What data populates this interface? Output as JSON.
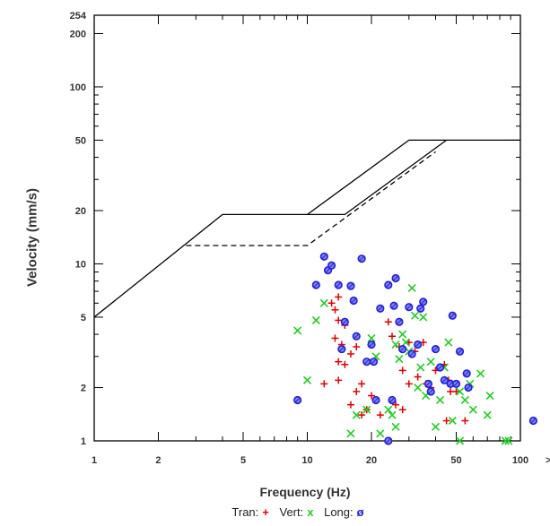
{
  "chart_data": {
    "type": "scatter",
    "xlabel": "Frequency (Hz)",
    "ylabel": "Velocity (mm/s)",
    "x_scale": "log",
    "y_scale": "log",
    "xlim": [
      1,
      100
    ],
    "ylim": [
      1,
      254
    ],
    "x_ticks": [
      "1",
      "2",
      "5",
      "10",
      "20",
      "50",
      "100"
    ],
    "x_overflow_label": ">",
    "y_ticks": [
      "1",
      "2",
      "5",
      "10",
      "20",
      "50",
      "100",
      "200",
      "254"
    ],
    "grid": false,
    "legend_position": "bottom-center",
    "legend": [
      {
        "label": "Tran:",
        "symbol": "+",
        "color": "#e00000"
      },
      {
        "label": "Vert:",
        "symbol": "x",
        "color": "#22cc22"
      },
      {
        "label": "Long:",
        "symbol": "ø",
        "color": "#2020d0"
      }
    ],
    "limit_lines": [
      {
        "style": "solid",
        "points": [
          [
            1,
            5
          ],
          [
            4,
            19
          ],
          [
            10,
            19
          ],
          [
            30,
            50
          ],
          [
            100,
            50
          ]
        ]
      },
      {
        "style": "solid",
        "points": [
          [
            10,
            19
          ],
          [
            15,
            19
          ],
          [
            45,
            50
          ]
        ]
      },
      {
        "style": "dashed",
        "points": [
          [
            2.7,
            12.7
          ],
          [
            10,
            12.7
          ],
          [
            40,
            43
          ]
        ]
      }
    ],
    "series": [
      {
        "name": "Tran",
        "marker": "plus",
        "color": "#e00000",
        "points": [
          [
            13,
            6
          ],
          [
            14,
            6.5
          ],
          [
            13.5,
            5.5
          ],
          [
            14,
            4.8
          ],
          [
            15,
            4.5
          ],
          [
            13.5,
            3.8
          ],
          [
            14.5,
            3.5
          ],
          [
            16,
            3.1
          ],
          [
            14,
            2.8
          ],
          [
            17,
            3.4
          ],
          [
            12,
            2.1
          ],
          [
            14,
            2.2
          ],
          [
            18,
            2.1
          ],
          [
            17,
            1.9
          ],
          [
            16,
            1.6
          ],
          [
            19,
            1.5
          ],
          [
            18,
            1.4
          ],
          [
            20,
            1.8
          ],
          [
            25,
            3.9
          ],
          [
            27,
            3.4
          ],
          [
            30,
            3.6
          ],
          [
            32,
            3.2
          ],
          [
            35,
            3.6
          ],
          [
            24,
            4.7
          ],
          [
            28,
            2.5
          ],
          [
            22,
            1.4
          ],
          [
            30,
            2.1
          ],
          [
            33,
            2.3
          ],
          [
            36,
            2.1
          ],
          [
            40,
            2.5
          ],
          [
            44,
            2.7
          ],
          [
            26,
            1.6
          ],
          [
            38,
            2
          ],
          [
            45,
            1.3
          ],
          [
            46,
            2.2
          ],
          [
            47,
            1.9
          ],
          [
            50,
            1.9
          ],
          [
            55,
            1.3
          ],
          [
            15,
            2.7
          ],
          [
            28,
            1.5
          ]
        ],
        "_n": 40
      },
      {
        "name": "Vert",
        "marker": "x",
        "color": "#22cc22",
        "points": [
          [
            9,
            4.2
          ],
          [
            10,
            2.2
          ],
          [
            11,
            4.8
          ],
          [
            12,
            6
          ],
          [
            16,
            1.1
          ],
          [
            17,
            1.4
          ],
          [
            19,
            1.5
          ],
          [
            20,
            3.8
          ],
          [
            21,
            3
          ],
          [
            22,
            1.1
          ],
          [
            24,
            1.5
          ],
          [
            25,
            1.4
          ],
          [
            26,
            3.5
          ],
          [
            26,
            1.2
          ],
          [
            27,
            2.9
          ],
          [
            28,
            4
          ],
          [
            29,
            3.6
          ],
          [
            30,
            3.2
          ],
          [
            31,
            7.3
          ],
          [
            32,
            5.1
          ],
          [
            33,
            2
          ],
          [
            34,
            2.6
          ],
          [
            35,
            5
          ],
          [
            36,
            1.8
          ],
          [
            38,
            2.8
          ],
          [
            40,
            1.2
          ],
          [
            42,
            1.7
          ],
          [
            44,
            2.6
          ],
          [
            46,
            3.6
          ],
          [
            48,
            1.3
          ],
          [
            52,
            1.9
          ],
          [
            55,
            1.7
          ],
          [
            58,
            2.1
          ],
          [
            60,
            1.5
          ],
          [
            65,
            2.4
          ],
          [
            70,
            1.4
          ],
          [
            72,
            1.8
          ],
          [
            52,
            1
          ],
          [
            85,
            1
          ],
          [
            88,
            1
          ]
        ]
      },
      {
        "name": "Long",
        "marker": "circle-slash",
        "color": "#2020d0",
        "points": [
          [
            9,
            1.7
          ],
          [
            11,
            7.6
          ],
          [
            12,
            11
          ],
          [
            12.5,
            9.2
          ],
          [
            13,
            9.8
          ],
          [
            14,
            7.6
          ],
          [
            14.5,
            3.3
          ],
          [
            15,
            4.7
          ],
          [
            16,
            7.5
          ],
          [
            16.5,
            6.2
          ],
          [
            17,
            3.9
          ],
          [
            18,
            10.7
          ],
          [
            19,
            2.8
          ],
          [
            20,
            3.5
          ],
          [
            20.5,
            2.8
          ],
          [
            21,
            1.7
          ],
          [
            22,
            5.6
          ],
          [
            24,
            7.6
          ],
          [
            25,
            1.7
          ],
          [
            25.5,
            5.8
          ],
          [
            26,
            8.3
          ],
          [
            27,
            4.7
          ],
          [
            28,
            3.3
          ],
          [
            30,
            5.7
          ],
          [
            31,
            3.1
          ],
          [
            33,
            3.5
          ],
          [
            34,
            5.6
          ],
          [
            35,
            6.1
          ],
          [
            37,
            2.1
          ],
          [
            38,
            1.9
          ],
          [
            40,
            3.3
          ],
          [
            42,
            2.6
          ],
          [
            44,
            2.2
          ],
          [
            47,
            2.1
          ],
          [
            48,
            5.1
          ],
          [
            50,
            2.1
          ],
          [
            52,
            3.2
          ],
          [
            56,
            2.4
          ],
          [
            57,
            2
          ],
          [
            115,
            1.3
          ],
          [
            24,
            1
          ]
        ]
      }
    ]
  }
}
